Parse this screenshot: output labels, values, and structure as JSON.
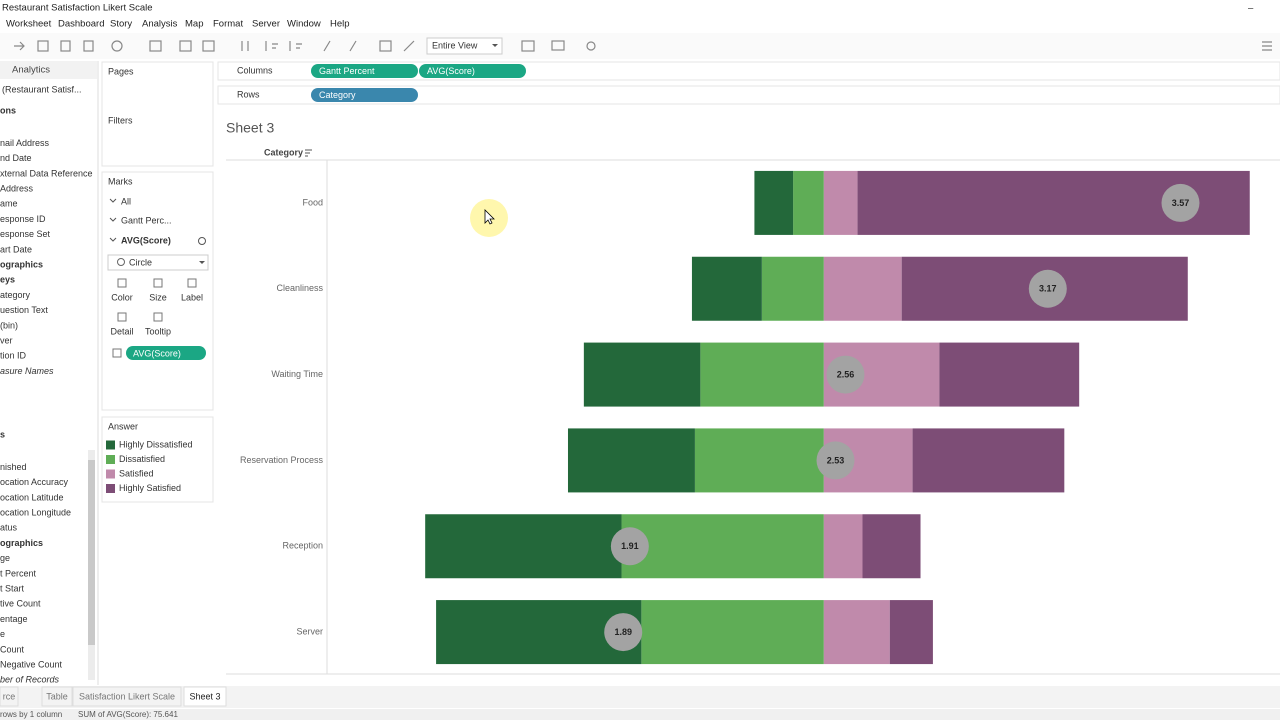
{
  "window": {
    "title": "Restaurant Satisfaction Likert Scale",
    "menu": [
      "Worksheet",
      "Dashboard",
      "Story",
      "Analysis",
      "Map",
      "Format",
      "Server",
      "Window",
      "Help"
    ],
    "fit": "Entire View"
  },
  "data_pane": {
    "tab": "Analytics",
    "source": "(Restaurant Satisf...",
    "dimensions_header": "ons",
    "dimensions": [
      {
        "label": "nail Address"
      },
      {
        "label": "nd Date"
      },
      {
        "label": "xternal Data Reference"
      },
      {
        "label": "Address"
      },
      {
        "label": "ame"
      },
      {
        "label": "esponse ID"
      },
      {
        "label": "esponse Set"
      },
      {
        "label": "art Date"
      },
      {
        "label": "ographics",
        "bold": true
      },
      {
        "label": "eys",
        "bold": true
      },
      {
        "label": "ategory"
      },
      {
        "label": "uestion Text"
      },
      {
        "label": "(bin)"
      },
      {
        "label": "ver"
      },
      {
        "label": "tion ID"
      },
      {
        "label": "asure Names",
        "italic": true
      }
    ],
    "measures_header": "s",
    "measures": [
      {
        "label": "nished"
      },
      {
        "label": "ocation Accuracy"
      },
      {
        "label": "ocation Latitude"
      },
      {
        "label": "ocation Longitude"
      },
      {
        "label": "atus"
      },
      {
        "label": "ographics",
        "bold": true
      },
      {
        "label": "ge"
      },
      {
        "label": "t Percent"
      },
      {
        "label": "t Start"
      },
      {
        "label": "tive Count"
      },
      {
        "label": "entage"
      },
      {
        "label": "e"
      },
      {
        "label": "Count"
      },
      {
        "label": "Negative Count"
      },
      {
        "label": "ber of Records",
        "italic": true
      }
    ]
  },
  "cards": {
    "pages": "Pages",
    "filters": "Filters",
    "marks": "Marks",
    "marks_all": "All",
    "marks_gantt": "Gantt Perc...",
    "marks_avg": "AVG(Score)",
    "mark_type": "Circle",
    "buttons": [
      "Color",
      "Size",
      "Label",
      "Detail",
      "Tooltip"
    ],
    "label_pill": "AVG(Score)",
    "legend_title": "Answer"
  },
  "shelves": {
    "columns": "Columns",
    "column_pills": [
      "Gantt Percent",
      "AVG(Score)"
    ],
    "rows": "Rows",
    "row_pills": [
      "Category"
    ]
  },
  "chart_data": {
    "type": "diverging_bar",
    "title": "Sheet 3",
    "row_header": "Category",
    "categories": [
      "Food",
      "Cleanliness",
      "Waiting Time",
      "Reservation Process",
      "Reception",
      "Server"
    ],
    "xlim": [
      -100,
      92
    ],
    "x2lim": [
      1,
      3.87
    ],
    "series": [
      {
        "name": "Highly Dissatisfied",
        "color": "#23683a",
        "values": [
          7.8,
          14.1,
          23.5,
          25.6,
          39.6,
          41.4
        ]
      },
      {
        "name": "Dissatisfied",
        "color": "#5fad56",
        "values": [
          6.2,
          12.5,
          24.9,
          26.0,
          40.8,
          36.8
        ]
      },
      {
        "name": "Satisfied",
        "color": "#c08aab",
        "values": [
          6.8,
          15.7,
          23.3,
          17.9,
          7.8,
          13.3
        ]
      },
      {
        "name": "Highly Satisfied",
        "color": "#7d4d76",
        "values": [
          79.1,
          57.7,
          28.2,
          30.6,
          11.7,
          8.7
        ]
      }
    ],
    "scores": {
      "color": "#a3a3a3",
      "values": [
        3.57,
        3.17,
        2.56,
        2.53,
        1.91,
        1.89
      ]
    }
  },
  "tabs": [
    "rce",
    "Table",
    "Satisfaction Likert Scale",
    "Sheet 3"
  ],
  "status": [
    "rows by 1 column",
    "SUM of AVG(Score): 75.641"
  ]
}
